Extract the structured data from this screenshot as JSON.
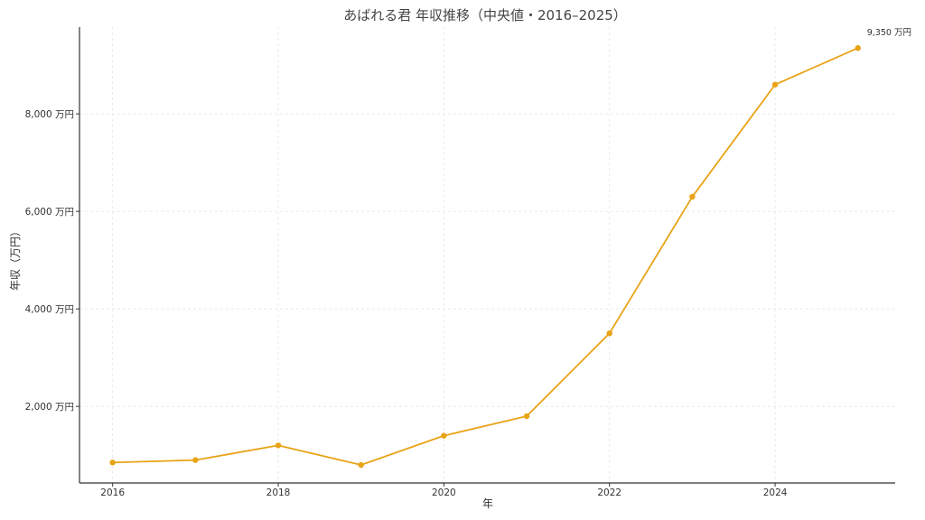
{
  "chart_data": {
    "type": "line",
    "title": "あばれる君 年収推移（中央値・2016–2025）",
    "xlabel": "年",
    "ylabel": "年収（万円）",
    "x": [
      2016,
      2017,
      2018,
      2019,
      2020,
      2021,
      2022,
      2023,
      2024,
      2025
    ],
    "series": [
      {
        "values": [
          850,
          900,
          1200,
          800,
          1400,
          1800,
          3500,
          6300,
          8600,
          9350
        ]
      }
    ],
    "xlim": [
      2015.6,
      2025.45
    ],
    "ylim": [
      430,
      9780
    ],
    "x_ticks": [
      2016,
      2018,
      2020,
      2022,
      2024
    ],
    "x_tick_labels": [
      "2016",
      "2018",
      "2020",
      "2022",
      "2024"
    ],
    "y_ticks": [
      2000,
      4000,
      6000,
      8000
    ],
    "y_tick_labels": [
      "2,000 万円",
      "4,000 万円",
      "6,000 万円",
      "8,000 万円"
    ],
    "annotations": [
      {
        "x": 2025,
        "y": 9350,
        "text": "9,350 万円"
      }
    ],
    "grid": true,
    "line_color": "#E8A317"
  }
}
